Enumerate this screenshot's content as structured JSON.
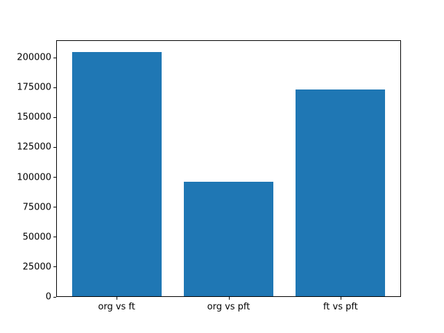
{
  "chart_data": {
    "type": "bar",
    "categories": [
      "org vs ft",
      "org vs pft",
      "ft vs pft"
    ],
    "values": [
      204800,
      95900,
      173000
    ],
    "title": "",
    "xlabel": "",
    "ylabel": "",
    "ylim": [
      0,
      214500
    ],
    "yticks": [
      0,
      25000,
      50000,
      75000,
      100000,
      125000,
      150000,
      175000,
      200000
    ],
    "bar_color": "#1f77b4",
    "frame_color": "#000000",
    "background_color": "#ffffff",
    "grid": false,
    "legend": null,
    "bar_width_fraction": 0.8
  }
}
